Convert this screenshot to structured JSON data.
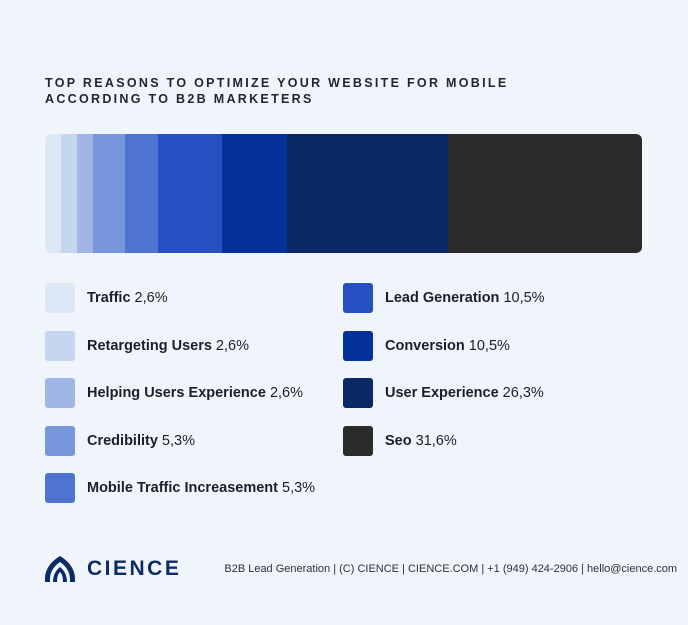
{
  "title_line1": "TOP REASONS TO OPTIMIZE YOUR WEBSITE FOR MOBILE",
  "title_line2": "ACCORDING TO B2B MARKETERS",
  "chart_data": {
    "type": "bar",
    "orientation": "horizontal-stacked",
    "unit": "%",
    "categories": [
      "Traffic",
      "Retargeting Users",
      "Helping Users Experience",
      "Credibility",
      "Mobile Traffic Increasement",
      "Lead Generation",
      "Conversion",
      "User Experience",
      "Seo"
    ],
    "values": [
      2.6,
      2.6,
      2.6,
      5.3,
      5.3,
      10.5,
      10.5,
      26.3,
      31.6
    ],
    "value_labels": [
      "2,6%",
      "2,6%",
      "2,6%",
      "5,3%",
      "5,3%",
      "10,5%",
      "10,5%",
      "26,3%",
      "31,6%"
    ],
    "colors": [
      "#dde8f7",
      "#c5d6f1",
      "#9fb6e6",
      "#7896dc",
      "#4e73d1",
      "#2650c2",
      "#04329a",
      "#0b2766",
      "#2b2b2b"
    ],
    "legend_placement": "bottom"
  },
  "footer": {
    "logo_text": "CIENCE",
    "logo_icon": "cience-mark-icon",
    "contact": "B2B Lead Generation | (C) CIENCE | CIENCE.COM | +1 (949) 424-2906 | hello@cience.com"
  }
}
